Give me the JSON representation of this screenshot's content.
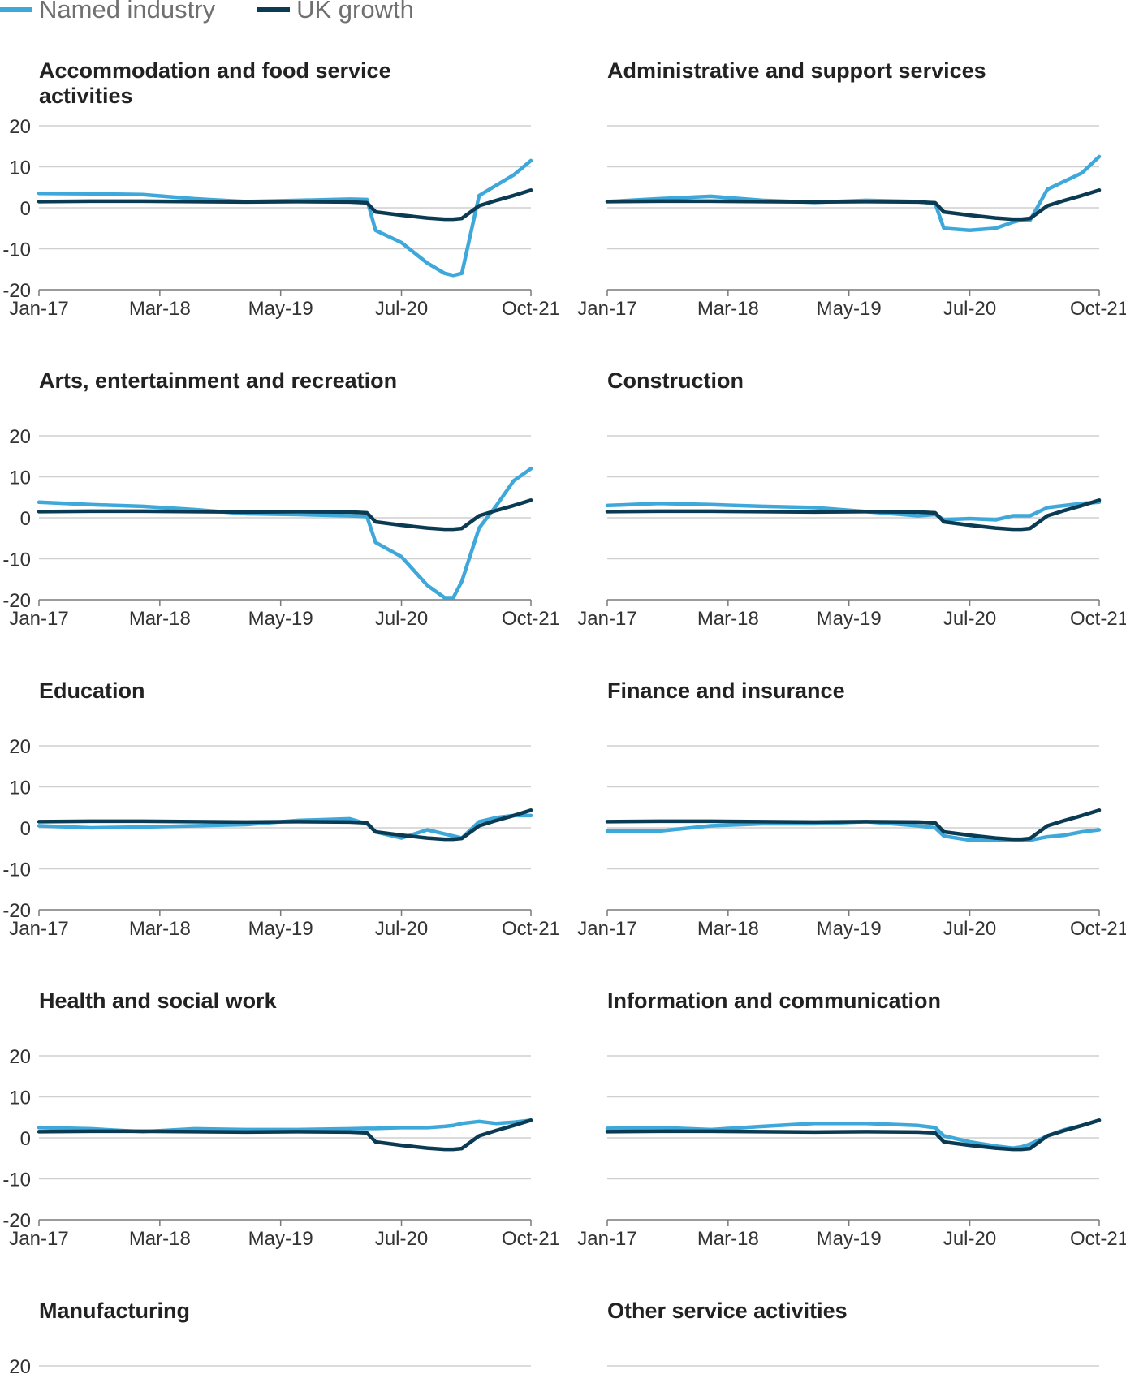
{
  "legend": [
    {
      "label": "Named industry",
      "color": "#3ea8da"
    },
    {
      "label": "UK growth",
      "color": "#0b3a53"
    }
  ],
  "axes": {
    "yticks": [
      "20",
      "10",
      "0",
      "-10",
      "-20"
    ],
    "xticks": [
      "Jan-17",
      "Mar-18",
      "May-19",
      "Jul-20",
      "Oct-21"
    ]
  },
  "chart_data": [
    {
      "type": "line",
      "title": "Accommodation and food service activities",
      "x_range": [
        "Jan-17",
        "Oct-21"
      ],
      "ylim": [
        -20,
        20
      ],
      "grid": true,
      "series": [
        {
          "name": "Named industry",
          "color": "#3ea8da",
          "x": [
            "Jan-17",
            "Jul-17",
            "Jan-18",
            "Jul-18",
            "Jan-19",
            "Jul-19",
            "Jan-20",
            "Mar-20",
            "Apr-20",
            "Jul-20",
            "Oct-20",
            "Dec-20",
            "Jan-21",
            "Feb-21",
            "Apr-21",
            "Jun-21",
            "Aug-21",
            "Oct-21"
          ],
          "values": [
            3.5,
            3.4,
            3.2,
            2.2,
            1.5,
            1.8,
            2.1,
            2.0,
            -5.5,
            -8.5,
            -13.5,
            -16,
            -16.5,
            -16,
            3,
            5.5,
            8,
            11.5
          ]
        },
        {
          "name": "UK growth",
          "color": "#0b3a53",
          "x": [
            "Jan-17",
            "Jul-17",
            "Jan-18",
            "Jul-18",
            "Jan-19",
            "Jul-19",
            "Jan-20",
            "Mar-20",
            "Apr-20",
            "Jul-20",
            "Oct-20",
            "Dec-20",
            "Jan-21",
            "Feb-21",
            "Apr-21",
            "Jun-21",
            "Aug-21",
            "Oct-21"
          ],
          "values": [
            1.5,
            1.6,
            1.6,
            1.5,
            1.4,
            1.5,
            1.4,
            1.2,
            -1,
            -1.8,
            -2.5,
            -2.8,
            -2.8,
            -2.6,
            0.5,
            1.8,
            3,
            4.3
          ]
        }
      ]
    },
    {
      "type": "line",
      "title": "Administrative and support services",
      "x_range": [
        "Jan-17",
        "Oct-21"
      ],
      "ylim": [
        -20,
        20
      ],
      "grid": true,
      "series": [
        {
          "name": "Named industry",
          "color": "#3ea8da",
          "x": [
            "Jan-17",
            "Jul-17",
            "Jan-18",
            "Jul-18",
            "Jan-19",
            "Jul-19",
            "Jan-20",
            "Mar-20",
            "Apr-20",
            "Jul-20",
            "Oct-20",
            "Dec-20",
            "Jan-21",
            "Feb-21",
            "Apr-21",
            "Jun-21",
            "Aug-21",
            "Oct-21"
          ],
          "values": [
            1.5,
            2.2,
            2.8,
            1.8,
            1.3,
            1.8,
            1.5,
            1,
            -5,
            -5.5,
            -5,
            -3.5,
            -3,
            -3,
            4.5,
            6.5,
            8.5,
            12.5
          ]
        },
        {
          "name": "UK growth",
          "color": "#0b3a53",
          "x": [
            "Jan-17",
            "Jul-17",
            "Jan-18",
            "Jul-18",
            "Jan-19",
            "Jul-19",
            "Jan-20",
            "Mar-20",
            "Apr-20",
            "Jul-20",
            "Oct-20",
            "Dec-20",
            "Jan-21",
            "Feb-21",
            "Apr-21",
            "Jun-21",
            "Aug-21",
            "Oct-21"
          ],
          "values": [
            1.5,
            1.6,
            1.6,
            1.5,
            1.4,
            1.5,
            1.4,
            1.2,
            -1,
            -1.8,
            -2.5,
            -2.8,
            -2.8,
            -2.6,
            0.5,
            1.8,
            3,
            4.3
          ]
        }
      ]
    },
    {
      "type": "line",
      "title": "Arts, entertainment and recreation",
      "x_range": [
        "Jan-17",
        "Oct-21"
      ],
      "ylim": [
        -20,
        20
      ],
      "grid": true,
      "series": [
        {
          "name": "Named industry",
          "color": "#3ea8da",
          "x": [
            "Jan-17",
            "Jul-17",
            "Jan-18",
            "Jul-18",
            "Jan-19",
            "Jul-19",
            "Jan-20",
            "Mar-20",
            "Apr-20",
            "Jul-20",
            "Oct-20",
            "Dec-20",
            "Jan-21",
            "Feb-21",
            "Apr-21",
            "Jun-21",
            "Aug-21",
            "Oct-21"
          ],
          "values": [
            3.8,
            3.2,
            2.8,
            2,
            1,
            0.8,
            0.5,
            0.3,
            -6,
            -9.5,
            -16.5,
            -19.5,
            -19.5,
            -15.5,
            -2.5,
            3,
            9,
            12
          ]
        },
        {
          "name": "UK growth",
          "color": "#0b3a53",
          "x": [
            "Jan-17",
            "Jul-17",
            "Jan-18",
            "Jul-18",
            "Jan-19",
            "Jul-19",
            "Jan-20",
            "Mar-20",
            "Apr-20",
            "Jul-20",
            "Oct-20",
            "Dec-20",
            "Jan-21",
            "Feb-21",
            "Apr-21",
            "Jun-21",
            "Aug-21",
            "Oct-21"
          ],
          "values": [
            1.5,
            1.6,
            1.6,
            1.5,
            1.4,
            1.5,
            1.4,
            1.2,
            -1,
            -1.8,
            -2.5,
            -2.8,
            -2.8,
            -2.6,
            0.5,
            1.8,
            3,
            4.3
          ]
        }
      ]
    },
    {
      "type": "line",
      "title": "Construction",
      "x_range": [
        "Jan-17",
        "Oct-21"
      ],
      "ylim": [
        -20,
        20
      ],
      "grid": true,
      "series": [
        {
          "name": "Named industry",
          "color": "#3ea8da",
          "x": [
            "Jan-17",
            "Jul-17",
            "Jan-18",
            "Jul-18",
            "Jan-19",
            "Jul-19",
            "Jan-20",
            "Mar-20",
            "Apr-20",
            "Jul-20",
            "Oct-20",
            "Dec-20",
            "Jan-21",
            "Feb-21",
            "Apr-21",
            "Jun-21",
            "Aug-21",
            "Oct-21"
          ],
          "values": [
            3,
            3.5,
            3.2,
            2.8,
            2.5,
            1.5,
            0.5,
            0.8,
            -0.5,
            -0.2,
            -0.5,
            0.5,
            0.5,
            0.5,
            2.5,
            3,
            3.5,
            3.8
          ]
        },
        {
          "name": "UK growth",
          "color": "#0b3a53",
          "x": [
            "Jan-17",
            "Jul-17",
            "Jan-18",
            "Jul-18",
            "Jan-19",
            "Jul-19",
            "Jan-20",
            "Mar-20",
            "Apr-20",
            "Jul-20",
            "Oct-20",
            "Dec-20",
            "Jan-21",
            "Feb-21",
            "Apr-21",
            "Jun-21",
            "Aug-21",
            "Oct-21"
          ],
          "values": [
            1.5,
            1.6,
            1.6,
            1.5,
            1.4,
            1.5,
            1.4,
            1.2,
            -1,
            -1.8,
            -2.5,
            -2.8,
            -2.8,
            -2.6,
            0.5,
            1.8,
            3,
            4.3
          ]
        }
      ]
    },
    {
      "type": "line",
      "title": "Education",
      "x_range": [
        "Jan-17",
        "Oct-21"
      ],
      "ylim": [
        -20,
        20
      ],
      "grid": true,
      "series": [
        {
          "name": "Named industry",
          "color": "#3ea8da",
          "x": [
            "Jan-17",
            "Jul-17",
            "Jan-18",
            "Jul-18",
            "Jan-19",
            "Jul-19",
            "Jan-20",
            "Mar-20",
            "Apr-20",
            "Jul-20",
            "Oct-20",
            "Dec-20",
            "Jan-21",
            "Feb-21",
            "Apr-21",
            "Jun-21",
            "Aug-21",
            "Oct-21"
          ],
          "values": [
            0.5,
            0,
            0.2,
            0.5,
            0.8,
            1.8,
            2.2,
            1,
            -1,
            -2.5,
            -0.5,
            -1.5,
            -2,
            -2.5,
            1.5,
            2.5,
            3,
            3
          ]
        },
        {
          "name": "UK growth",
          "color": "#0b3a53",
          "x": [
            "Jan-17",
            "Jul-17",
            "Jan-18",
            "Jul-18",
            "Jan-19",
            "Jul-19",
            "Jan-20",
            "Mar-20",
            "Apr-20",
            "Jul-20",
            "Oct-20",
            "Dec-20",
            "Jan-21",
            "Feb-21",
            "Apr-21",
            "Jun-21",
            "Aug-21",
            "Oct-21"
          ],
          "values": [
            1.5,
            1.6,
            1.6,
            1.5,
            1.4,
            1.5,
            1.4,
            1.2,
            -1,
            -1.8,
            -2.5,
            -2.8,
            -2.8,
            -2.6,
            0.5,
            1.8,
            3,
            4.3
          ]
        }
      ]
    },
    {
      "type": "line",
      "title": "Finance and insurance",
      "x_range": [
        "Jan-17",
        "Oct-21"
      ],
      "ylim": [
        -20,
        20
      ],
      "grid": true,
      "series": [
        {
          "name": "Named industry",
          "color": "#3ea8da",
          "x": [
            "Jan-17",
            "Jul-17",
            "Jan-18",
            "Jul-18",
            "Jan-19",
            "Jul-19",
            "Jan-20",
            "Mar-20",
            "Apr-20",
            "Jul-20",
            "Oct-20",
            "Dec-20",
            "Jan-21",
            "Feb-21",
            "Apr-21",
            "Jun-21",
            "Aug-21",
            "Oct-21"
          ],
          "values": [
            -0.8,
            -0.8,
            0.5,
            1,
            1,
            1.5,
            0.5,
            0,
            -2,
            -3,
            -3,
            -3,
            -3,
            -3,
            -2.2,
            -1.8,
            -1,
            -0.5
          ]
        },
        {
          "name": "UK growth",
          "color": "#0b3a53",
          "x": [
            "Jan-17",
            "Jul-17",
            "Jan-18",
            "Jul-18",
            "Jan-19",
            "Jul-19",
            "Jan-20",
            "Mar-20",
            "Apr-20",
            "Jul-20",
            "Oct-20",
            "Dec-20",
            "Jan-21",
            "Feb-21",
            "Apr-21",
            "Jun-21",
            "Aug-21",
            "Oct-21"
          ],
          "values": [
            1.5,
            1.6,
            1.6,
            1.5,
            1.4,
            1.5,
            1.4,
            1.2,
            -1,
            -1.8,
            -2.5,
            -2.8,
            -2.8,
            -2.6,
            0.5,
            1.8,
            3,
            4.3
          ]
        }
      ]
    },
    {
      "type": "line",
      "title": "Health and social work",
      "x_range": [
        "Jan-17",
        "Oct-21"
      ],
      "ylim": [
        -20,
        20
      ],
      "grid": true,
      "series": [
        {
          "name": "Named industry",
          "color": "#3ea8da",
          "x": [
            "Jan-17",
            "Jul-17",
            "Jan-18",
            "Jul-18",
            "Jan-19",
            "Jul-19",
            "Jan-20",
            "Mar-20",
            "Apr-20",
            "Jul-20",
            "Oct-20",
            "Dec-20",
            "Jan-21",
            "Feb-21",
            "Apr-21",
            "Jun-21",
            "Aug-21",
            "Oct-21"
          ],
          "values": [
            2.5,
            2.2,
            1.5,
            2.2,
            2,
            2,
            2.2,
            2.3,
            2.3,
            2.5,
            2.5,
            2.8,
            3,
            3.5,
            4,
            3.5,
            3.8,
            4.3
          ]
        },
        {
          "name": "UK growth",
          "color": "#0b3a53",
          "x": [
            "Jan-17",
            "Jul-17",
            "Jan-18",
            "Jul-18",
            "Jan-19",
            "Jul-19",
            "Jan-20",
            "Mar-20",
            "Apr-20",
            "Jul-20",
            "Oct-20",
            "Dec-20",
            "Jan-21",
            "Feb-21",
            "Apr-21",
            "Jun-21",
            "Aug-21",
            "Oct-21"
          ],
          "values": [
            1.5,
            1.6,
            1.6,
            1.5,
            1.4,
            1.5,
            1.4,
            1.2,
            -1,
            -1.8,
            -2.5,
            -2.8,
            -2.8,
            -2.6,
            0.5,
            1.8,
            3,
            4.3
          ]
        }
      ]
    },
    {
      "type": "line",
      "title": "Information and communication",
      "x_range": [
        "Jan-17",
        "Oct-21"
      ],
      "ylim": [
        -20,
        20
      ],
      "grid": true,
      "series": [
        {
          "name": "Named industry",
          "color": "#3ea8da",
          "x": [
            "Jan-17",
            "Jul-17",
            "Jan-18",
            "Jul-18",
            "Jan-19",
            "Jul-19",
            "Jan-20",
            "Mar-20",
            "Apr-20",
            "Jul-20",
            "Oct-20",
            "Dec-20",
            "Jan-21",
            "Feb-21",
            "Apr-21",
            "Jun-21",
            "Aug-21",
            "Oct-21"
          ],
          "values": [
            2.3,
            2.5,
            2,
            2.8,
            3.5,
            3.5,
            3,
            2.5,
            0.5,
            -1,
            -2,
            -2.5,
            -2.2,
            -1.5,
            0.5,
            2,
            3,
            4.3
          ]
        },
        {
          "name": "UK growth",
          "color": "#0b3a53",
          "x": [
            "Jan-17",
            "Jul-17",
            "Jan-18",
            "Jul-18",
            "Jan-19",
            "Jul-19",
            "Jan-20",
            "Mar-20",
            "Apr-20",
            "Jul-20",
            "Oct-20",
            "Dec-20",
            "Jan-21",
            "Feb-21",
            "Apr-21",
            "Jun-21",
            "Aug-21",
            "Oct-21"
          ],
          "values": [
            1.5,
            1.6,
            1.6,
            1.5,
            1.4,
            1.5,
            1.4,
            1.2,
            -1,
            -1.8,
            -2.5,
            -2.8,
            -2.8,
            -2.6,
            0.5,
            1.8,
            3,
            4.3
          ]
        }
      ]
    },
    {
      "type": "line",
      "title": "Manufacturing",
      "x_range": [
        "Jan-17",
        "Oct-21"
      ],
      "ylim": [
        -20,
        20
      ],
      "grid": true,
      "series": []
    },
    {
      "type": "line",
      "title": "Other service activities",
      "x_range": [
        "Jan-17",
        "Oct-21"
      ],
      "ylim": [
        -20,
        20
      ],
      "grid": true,
      "series": []
    }
  ]
}
